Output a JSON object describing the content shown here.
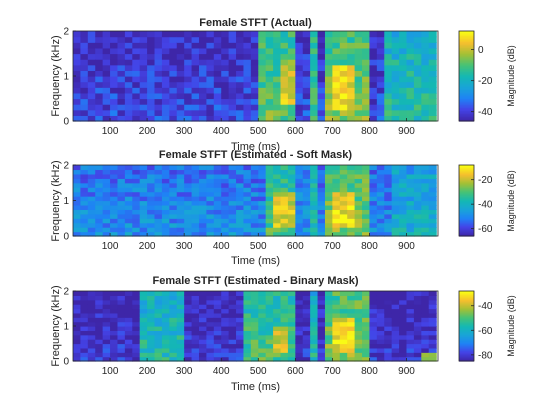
{
  "figure": {
    "background": "#ffffff",
    "colormap": "parula",
    "colormap_stops": [
      "#3e26a8",
      "#4443e7",
      "#1f82f5",
      "#19a4d8",
      "#14b8b3",
      "#45c277",
      "#a2c036",
      "#f5be2e",
      "#f9fb15"
    ]
  },
  "chart_data": [
    {
      "type": "heatmap",
      "title": "Female STFT (Actual)",
      "xlabel": "Time (ms)",
      "ylabel": "Frequency (kHz)",
      "xlim": [
        0,
        985
      ],
      "ylim": [
        0,
        2
      ],
      "xticks": [
        "100",
        "200",
        "300",
        "400",
        "500",
        "600",
        "700",
        "800",
        "900"
      ],
      "yticks": [
        "0",
        "1",
        "2"
      ],
      "colorbar": {
        "label": "Magnitude (dB)",
        "ticks": [
          "0",
          "-20",
          "-40"
        ],
        "range": [
          -46,
          12
        ]
      },
      "x_bins_ms": [
        0,
        20,
        40,
        60,
        80,
        100,
        120,
        140,
        160,
        180,
        200,
        220,
        240,
        260,
        280,
        300,
        320,
        340,
        360,
        380,
        400,
        420,
        440,
        460,
        480,
        500,
        520,
        540,
        560,
        580,
        600,
        620,
        640,
        660,
        680,
        700,
        720,
        740,
        760,
        780,
        800,
        820,
        840,
        860,
        880,
        900,
        920,
        940,
        960
      ],
      "y_bins_khz": [
        0,
        0.125,
        0.25,
        0.375,
        0.5,
        0.625,
        0.75,
        0.875,
        1,
        1.125,
        1.25,
        1.375,
        1.5,
        1.625,
        1.75,
        1.875
      ],
      "background_level_db": -38,
      "speech_regions": [
        {
          "t_ms": [
            510,
            600
          ],
          "f_khz": [
            0,
            2
          ],
          "db": -8
        },
        {
          "t_ms": [
            560,
            600
          ],
          "f_khz": [
            0.4,
            1.4
          ],
          "db": 5
        },
        {
          "t_ms": [
            640,
            660
          ],
          "f_khz": [
            0,
            2
          ],
          "db": -10
        },
        {
          "t_ms": [
            680,
            800
          ],
          "f_khz": [
            0,
            2
          ],
          "db": -5
        },
        {
          "t_ms": [
            700,
            760
          ],
          "f_khz": [
            0.3,
            1.2
          ],
          "db": 8
        },
        {
          "t_ms": [
            840,
            985
          ],
          "f_khz": [
            0,
            2
          ],
          "db": -15
        }
      ]
    },
    {
      "type": "heatmap",
      "title": "Female STFT (Estimated - Soft Mask)",
      "xlabel": "Time (ms)",
      "ylabel": "Frequency (kHz)",
      "xlim": [
        0,
        985
      ],
      "ylim": [
        0,
        2
      ],
      "xticks": [
        "100",
        "200",
        "300",
        "400",
        "500",
        "600",
        "700",
        "800",
        "900"
      ],
      "yticks": [
        "0",
        "1",
        "2"
      ],
      "colorbar": {
        "label": "Magnitude (dB)",
        "ticks": [
          "-20",
          "-40",
          "-60"
        ],
        "range": [
          -66,
          -8
        ]
      },
      "x_bins_ms": [
        0,
        20,
        40,
        60,
        80,
        100,
        120,
        140,
        160,
        180,
        200,
        220,
        240,
        260,
        280,
        300,
        320,
        340,
        360,
        380,
        400,
        420,
        440,
        460,
        480,
        500,
        520,
        540,
        560,
        580,
        600,
        620,
        640,
        660,
        680,
        700,
        720,
        740,
        760,
        780,
        800,
        820,
        840,
        860,
        880,
        900,
        920,
        940,
        960
      ],
      "y_bins_khz": [
        0,
        0.125,
        0.25,
        0.375,
        0.5,
        0.625,
        0.75,
        0.875,
        1,
        1.125,
        1.25,
        1.375,
        1.5,
        1.625,
        1.75,
        1.875
      ],
      "background_level_db": -48,
      "speech_regions": [
        {
          "t_ms": [
            520,
            600
          ],
          "f_khz": [
            0,
            2
          ],
          "db": -30
        },
        {
          "t_ms": [
            550,
            590
          ],
          "f_khz": [
            0.3,
            1.2
          ],
          "db": -15
        },
        {
          "t_ms": [
            640,
            660
          ],
          "f_khz": [
            0,
            2
          ],
          "db": -35
        },
        {
          "t_ms": [
            680,
            800
          ],
          "f_khz": [
            0,
            2
          ],
          "db": -25
        },
        {
          "t_ms": [
            700,
            760
          ],
          "f_khz": [
            0.2,
            1.2
          ],
          "db": -12
        },
        {
          "t_ms": [
            860,
            985
          ],
          "f_khz": [
            0,
            2
          ],
          "db": -40
        }
      ]
    },
    {
      "type": "heatmap",
      "title": "Female STFT (Estimated - Binary Mask)",
      "xlabel": "Time (ms)",
      "ylabel": "Frequency (kHz)",
      "xlim": [
        0,
        985
      ],
      "ylim": [
        0,
        2
      ],
      "xticks": [
        "100",
        "200",
        "300",
        "400",
        "500",
        "600",
        "700",
        "800",
        "900"
      ],
      "yticks": [
        "0",
        "1",
        "2"
      ],
      "colorbar": {
        "label": "Magnitude (dB)",
        "ticks": [
          "-40",
          "-60",
          "-80"
        ],
        "range": [
          -85,
          -28
        ]
      },
      "x_bins_ms": [
        0,
        20,
        40,
        60,
        80,
        100,
        120,
        140,
        160,
        180,
        200,
        220,
        240,
        260,
        280,
        300,
        320,
        340,
        360,
        380,
        400,
        420,
        440,
        460,
        480,
        500,
        520,
        540,
        560,
        580,
        600,
        620,
        640,
        660,
        680,
        700,
        720,
        740,
        760,
        780,
        800,
        820,
        840,
        860,
        880,
        900,
        920,
        940,
        960
      ],
      "y_bins_khz": [
        0,
        0.125,
        0.25,
        0.375,
        0.5,
        0.625,
        0.75,
        0.875,
        1,
        1.125,
        1.25,
        1.375,
        1.5,
        1.625,
        1.75,
        1.875
      ],
      "background_level_db": -80,
      "speech_regions": [
        {
          "t_ms": [
            180,
            290
          ],
          "f_khz": [
            0,
            2
          ],
          "db": -55
        },
        {
          "t_ms": [
            460,
            600
          ],
          "f_khz": [
            0,
            2
          ],
          "db": -50
        },
        {
          "t_ms": [
            540,
            580
          ],
          "f_khz": [
            0.3,
            1.0
          ],
          "db": -35
        },
        {
          "t_ms": [
            640,
            660
          ],
          "f_khz": [
            0,
            2
          ],
          "db": -55
        },
        {
          "t_ms": [
            680,
            800
          ],
          "f_khz": [
            0,
            2
          ],
          "db": -45
        },
        {
          "t_ms": [
            700,
            760
          ],
          "f_khz": [
            0.3,
            1.2
          ],
          "db": -32
        },
        {
          "t_ms": [
            940,
            985
          ],
          "f_khz": [
            0,
            0.3
          ],
          "db": -45
        }
      ]
    }
  ]
}
